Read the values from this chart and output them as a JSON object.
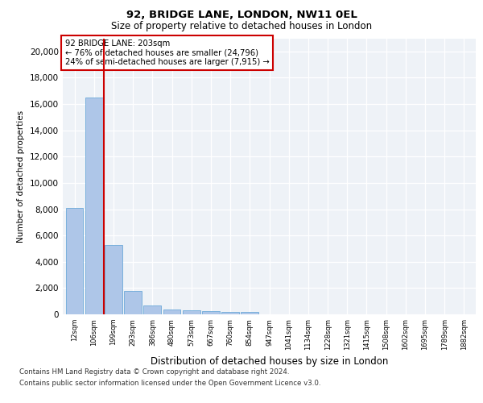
{
  "title1": "92, BRIDGE LANE, LONDON, NW11 0EL",
  "title2": "Size of property relative to detached houses in London",
  "xlabel": "Distribution of detached houses by size in London",
  "ylabel": "Number of detached properties",
  "bar_color": "#aec6e8",
  "bar_edge_color": "#5a9fd4",
  "vline_color": "#cc0000",
  "vline_pos": 1.5,
  "annotation_text": "92 BRIDGE LANE: 203sqm\n← 76% of detached houses are smaller (24,796)\n24% of semi-detached houses are larger (7,915) →",
  "annotation_box_color": "#cc0000",
  "categories": [
    "12sqm",
    "106sqm",
    "199sqm",
    "293sqm",
    "386sqm",
    "480sqm",
    "573sqm",
    "667sqm",
    "760sqm",
    "854sqm",
    "947sqm",
    "1041sqm",
    "1134sqm",
    "1228sqm",
    "1321sqm",
    "1415sqm",
    "1508sqm",
    "1602sqm",
    "1695sqm",
    "1789sqm",
    "1882sqm"
  ],
  "values": [
    8100,
    16500,
    5300,
    1750,
    700,
    380,
    280,
    230,
    210,
    180,
    0,
    0,
    0,
    0,
    0,
    0,
    0,
    0,
    0,
    0,
    0
  ],
  "ylim": [
    0,
    21000
  ],
  "yticks": [
    0,
    2000,
    4000,
    6000,
    8000,
    10000,
    12000,
    14000,
    16000,
    18000,
    20000
  ],
  "footer_line1": "Contains HM Land Registry data © Crown copyright and database right 2024.",
  "footer_line2": "Contains public sector information licensed under the Open Government Licence v3.0.",
  "background_color": "#eef2f7"
}
